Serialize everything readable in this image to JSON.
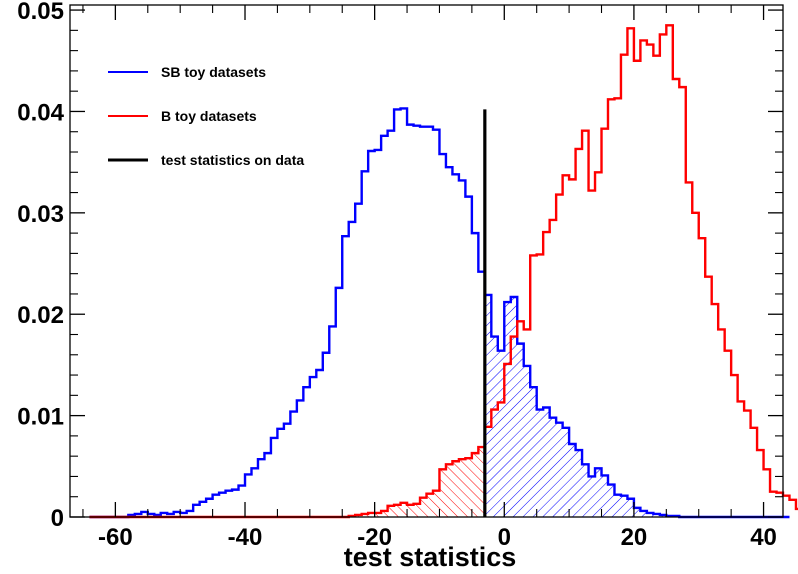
{
  "chart_data": {
    "type": "histogram",
    "xlabel": "test statistics",
    "ylabel": "",
    "xlim": [
      -67,
      43
    ],
    "ylim": [
      0,
      0.0505
    ],
    "x_ticks": [
      -60,
      -40,
      -20,
      0,
      20,
      40
    ],
    "x_tick_labels": [
      "-60",
      "-40",
      "-20",
      "0",
      "20",
      "40"
    ],
    "y_ticks": [
      0,
      0.01,
      0.02,
      0.03,
      0.04,
      0.05
    ],
    "y_tick_labels": [
      "0",
      "0.01",
      "0.02",
      "0.03",
      "0.04",
      "0.05"
    ],
    "bin_width": 1,
    "legend": {
      "placement": "top-left",
      "entries": [
        "SB toy datasets",
        "B toy datasets",
        "test statistics on data"
      ]
    },
    "observed": {
      "name": "test statistics on data",
      "x": -3,
      "y_top": 0.0402,
      "color": "#000000"
    },
    "series": [
      {
        "name": "SB toy datasets",
        "color": "#0000ff",
        "hatch": "right-of-observed",
        "x_start": -64,
        "values": [
          0,
          0,
          0,
          0,
          0,
          0,
          0.0002,
          0.0003,
          0.0005,
          0.0003,
          0.0002,
          0.0004,
          0.0003,
          0.0005,
          0.0004,
          0.0006,
          0.0012,
          0.0015,
          0.0018,
          0.0022,
          0.0024,
          0.0026,
          0.0027,
          0.0031,
          0.0042,
          0.0048,
          0.0057,
          0.0063,
          0.0078,
          0.0087,
          0.0092,
          0.0104,
          0.0115,
          0.0128,
          0.0138,
          0.0145,
          0.0162,
          0.0188,
          0.0226,
          0.0277,
          0.0291,
          0.0309,
          0.0341,
          0.0361,
          0.0362,
          0.0376,
          0.0381,
          0.0402,
          0.0403,
          0.0387,
          0.0386,
          0.0385,
          0.0385,
          0.0382,
          0.0358,
          0.0345,
          0.0338,
          0.0332,
          0.0316,
          0.028,
          0.0242,
          0.0219,
          0.0178,
          0.0164,
          0.0212,
          0.0217,
          0.0171,
          0.0149,
          0.0128,
          0.0106,
          0.0108,
          0.0098,
          0.0093,
          0.0088,
          0.0072,
          0.0066,
          0.0052,
          0.004,
          0.0048,
          0.0041,
          0.0032,
          0.0022,
          0.0021,
          0.0018,
          0.0009,
          0.0006,
          0.0004,
          0.0003,
          0.0002,
          0.0001,
          0.0001,
          0,
          0,
          0,
          0,
          0,
          0,
          0,
          0,
          0,
          0,
          0,
          0,
          0,
          0,
          0,
          0,
          0
        ]
      },
      {
        "name": "B toy datasets",
        "color": "#ff0000",
        "hatch": "left-of-observed",
        "x_start": -64,
        "values": [
          0,
          0,
          0,
          0,
          0,
          0,
          0,
          0,
          0,
          0,
          0,
          0,
          0,
          0,
          0,
          0,
          0,
          0,
          0,
          0,
          0,
          0,
          0,
          0,
          0,
          0,
          0,
          0,
          0,
          0,
          0,
          0,
          0,
          0,
          0,
          0,
          0,
          0,
          0,
          0,
          0.0001,
          0.0002,
          0.0003,
          0.0004,
          0.0004,
          0.0006,
          0.0011,
          0.0012,
          0.0014,
          0.0012,
          0.0013,
          0.0019,
          0.0023,
          0.0026,
          0.0047,
          0.0052,
          0.0055,
          0.0057,
          0.0058,
          0.0063,
          0.0069,
          0.0089,
          0.0106,
          0.0113,
          0.0151,
          0.0178,
          0.0193,
          0.0185,
          0.0258,
          0.0259,
          0.0281,
          0.0293,
          0.0318,
          0.0337,
          0.0333,
          0.0363,
          0.0381,
          0.0322,
          0.034,
          0.0383,
          0.0412,
          0.0413,
          0.0456,
          0.0482,
          0.045,
          0.047,
          0.0466,
          0.0455,
          0.0476,
          0.0485,
          0.0432,
          0.0424,
          0.033,
          0.03,
          0.0275,
          0.0237,
          0.021,
          0.0185,
          0.0164,
          0.014,
          0.0114,
          0.0105,
          0.0088,
          0.0066,
          0.0047,
          0.0025,
          0.0024,
          0.0021,
          0.0017,
          0.0008,
          0.0002
        ]
      }
    ]
  }
}
